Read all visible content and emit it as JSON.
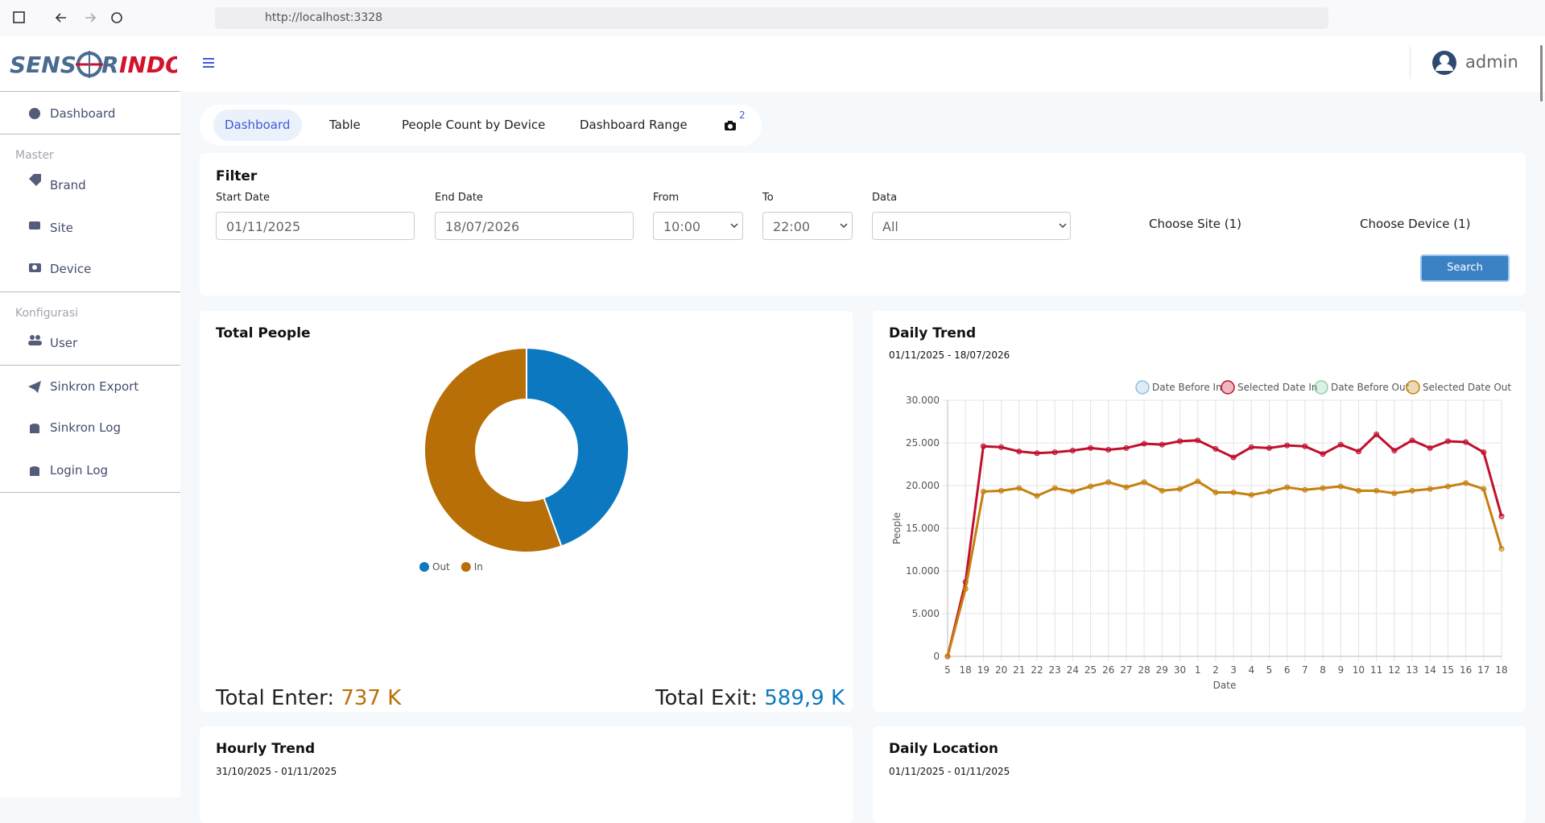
{
  "browser": {
    "url": "http://localhost:3328"
  },
  "header": {
    "logo_left": "SENS",
    "logo_mid": "R",
    "logo_right": "INDO",
    "user": "admin"
  },
  "sidebar": {
    "dashboard": "Dashboard",
    "master": "Master",
    "brand": "Brand",
    "site": "Site",
    "device": "Device",
    "konfigurasi": "Konfigurasi",
    "user": "User",
    "sinkron_export": "Sinkron Export",
    "sinkron_log": "Sinkron Log",
    "login_log": "Login Log"
  },
  "tabs": {
    "items": [
      "Dashboard",
      "Table",
      "People Count by Device",
      "Dashboard Range"
    ],
    "badge": 2
  },
  "filter": {
    "title": "Filter",
    "start_label": "Start Date",
    "start": "01/11/2025",
    "end_label": "End Date",
    "end": "18/07/2026",
    "from_label": "From",
    "from": "10:00",
    "to_label": "To",
    "to": "22:00",
    "data_label": "Data",
    "data": "All",
    "site": "Choose Site (1)",
    "device": "Choose Device (1)",
    "search": "Search"
  },
  "totals": {
    "enter_label": "Total Enter:",
    "enter": "737 K",
    "exit_label": "Total Exit:",
    "exit": "589,9 K"
  },
  "bottom": {
    "hourly_title": "Hourly Trend",
    "hourly_range": "31/10/2025 - 01/11/2025",
    "location_title": "Daily Location",
    "location_range": "01/11/2025 - 01/11/2025"
  },
  "chart_data": [
    {
      "type": "doughnut",
      "title": "Total People",
      "categories": [
        "Out",
        "In"
      ],
      "values": [
        589900,
        737000
      ],
      "colors": [
        "#0b78bf",
        "#b86f07"
      ]
    },
    {
      "type": "line",
      "title": "Daily Trend",
      "subtitle": "01/11/2025 - 18/07/2026",
      "x_label": "Date",
      "y_label": "People",
      "categories": [
        "5",
        "18",
        "19",
        "20",
        "21",
        "22",
        "23",
        "24",
        "25",
        "26",
        "27",
        "28",
        "29",
        "30",
        "1",
        "2",
        "3",
        "4",
        "5",
        "6",
        "7",
        "8",
        "9",
        "10",
        "11",
        "12",
        "13",
        "14",
        "15",
        "16",
        "17",
        "18"
      ],
      "series": [
        {
          "name": "Date Before In",
          "color": "#8fbfe0",
          "values": [
            null,
            null,
            null,
            null,
            null,
            null,
            null,
            null,
            null,
            null,
            null,
            null,
            null,
            null,
            null,
            null,
            null,
            null,
            null,
            null,
            null,
            null,
            null,
            null,
            null,
            null,
            null,
            null,
            null,
            null,
            null,
            null
          ]
        },
        {
          "name": "Selected Date In",
          "color": "#c0102e",
          "values": [
            0,
            8700,
            24600,
            24500,
            24000,
            23800,
            23900,
            24100,
            24400,
            24200,
            24400,
            24900,
            24800,
            25200,
            25300,
            24300,
            23300,
            24500,
            24400,
            24700,
            24600,
            23700,
            24800,
            24000,
            26000,
            24100,
            25300,
            24400,
            25200,
            25100,
            23900,
            16400
          ]
        },
        {
          "name": "Date Before Out",
          "color": "#8fd0a8",
          "values": [
            null,
            null,
            null,
            null,
            null,
            null,
            null,
            null,
            null,
            null,
            null,
            null,
            null,
            null,
            null,
            null,
            null,
            null,
            null,
            null,
            null,
            null,
            null,
            null,
            null,
            null,
            null,
            null,
            null,
            null,
            null,
            null
          ]
        },
        {
          "name": "Selected Date Out",
          "color": "#c5800e",
          "values": [
            0,
            7900,
            19300,
            19400,
            19700,
            18800,
            19700,
            19300,
            19900,
            20400,
            19800,
            20400,
            19400,
            19600,
            20500,
            19200,
            19200,
            18900,
            19300,
            19800,
            19500,
            19700,
            19900,
            19400,
            19400,
            19100,
            19400,
            19600,
            19900,
            20300,
            19600,
            12600
          ]
        }
      ],
      "ylim": [
        0,
        30000
      ],
      "yticks": [
        0,
        {
          "value": 5000,
          "label": "5.000"
        },
        {
          "value": 10000,
          "label": "10.000"
        },
        {
          "value": 15000,
          "label": "15.000"
        },
        {
          "value": 20000,
          "label": "20.000"
        },
        {
          "value": 25000,
          "label": "25.000"
        },
        {
          "value": 30000,
          "label": "30.000"
        }
      ],
      "grid": true
    }
  ]
}
